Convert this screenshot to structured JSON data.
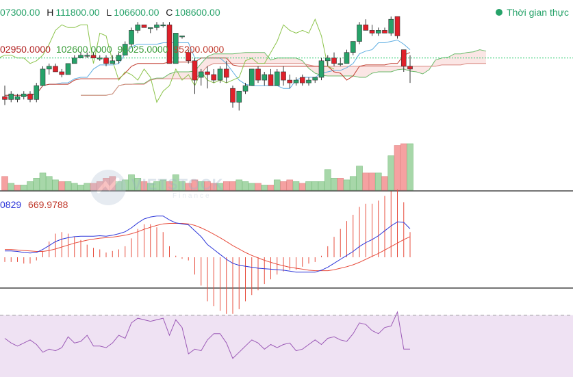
{
  "header": {
    "ohlc": {
      "open": "07300.00",
      "high_key": "H",
      "high": "111800.00",
      "low_key": "L",
      "low": "106600.00",
      "close_key": "C",
      "close": "108600.00"
    },
    "ichimoku": {
      "v1": "02950.0000",
      "v2": "102600.0000",
      "v3": "98025.0000",
      "v4": "95200.0000"
    },
    "macd": {
      "v1": "0829",
      "v2": "669.9788"
    },
    "realtime_label": "Thời gian thực"
  },
  "watermark": {
    "text": "VIETSTOCK",
    "sub": "Finance"
  },
  "colors": {
    "up": "#26a269",
    "down": "#e0202a",
    "vol_up": "#a7d7a9",
    "vol_down": "#f5a1a1",
    "macd": "#2b35d9",
    "signal": "#e74c3c",
    "rsi": "#9b59b6",
    "rsi_bg": "#efe2f3",
    "ichi_v1": "#b22222",
    "ichi_v2": "#3a9d3a",
    "ichi_v3": "#3a9d3a",
    "ichi_v4": "#c0392b"
  },
  "chart_data": {
    "type": "candlestick",
    "candles": [
      {
        "o": 17,
        "h": 21,
        "l": 14,
        "c": 16
      },
      {
        "o": 16,
        "h": 19,
        "l": 15,
        "c": 18
      },
      {
        "o": 16,
        "h": 18,
        "l": 15,
        "c": 17
      },
      {
        "o": 17,
        "h": 19,
        "l": 16,
        "c": 18
      },
      {
        "o": 18,
        "h": 19,
        "l": 15,
        "c": 16
      },
      {
        "o": 16,
        "h": 22,
        "l": 15,
        "c": 21
      },
      {
        "o": 21,
        "h": 28,
        "l": 21,
        "c": 27
      },
      {
        "o": 27,
        "h": 29,
        "l": 25,
        "c": 28
      },
      {
        "o": 28,
        "h": 29,
        "l": 26,
        "c": 26
      },
      {
        "o": 26,
        "h": 27,
        "l": 24,
        "c": 25
      },
      {
        "o": 25,
        "h": 29,
        "l": 25,
        "c": 29
      },
      {
        "o": 29,
        "h": 32,
        "l": 29,
        "c": 31
      },
      {
        "o": 31,
        "h": 33,
        "l": 31,
        "c": 32
      },
      {
        "o": 32,
        "h": 33,
        "l": 31,
        "c": 32
      },
      {
        "o": 32,
        "h": 33,
        "l": 31,
        "c": 31
      },
      {
        "o": 31,
        "h": 32,
        "l": 30,
        "c": 31
      },
      {
        "o": 31,
        "h": 32,
        "l": 28,
        "c": 29
      },
      {
        "o": 29,
        "h": 32,
        "l": 29,
        "c": 30
      },
      {
        "o": 30,
        "h": 33,
        "l": 29,
        "c": 32
      },
      {
        "o": 32,
        "h": 37,
        "l": 32,
        "c": 36
      },
      {
        "o": 36,
        "h": 42,
        "l": 35,
        "c": 41
      },
      {
        "o": 41,
        "h": 44,
        "l": 40,
        "c": 43
      },
      {
        "o": 43,
        "h": 43,
        "l": 42,
        "c": 42
      },
      {
        "o": 42,
        "h": 42,
        "l": 40,
        "c": 42
      },
      {
        "o": 42,
        "h": 44,
        "l": 41,
        "c": 43
      },
      {
        "o": 43,
        "h": 44,
        "l": 42,
        "c": 43
      },
      {
        "o": 43,
        "h": 44,
        "l": 29,
        "c": 29
      },
      {
        "o": 29,
        "h": 40,
        "l": 29,
        "c": 40
      },
      {
        "o": 39,
        "h": 39,
        "l": 38,
        "c": 39
      },
      {
        "o": 33,
        "h": 34,
        "l": 29,
        "c": 30
      },
      {
        "o": 30,
        "h": 31,
        "l": 18,
        "c": 23
      },
      {
        "o": 24,
        "h": 27,
        "l": 21,
        "c": 26
      },
      {
        "o": 26,
        "h": 28,
        "l": 20,
        "c": 25
      },
      {
        "o": 25,
        "h": 27,
        "l": 22,
        "c": 23
      },
      {
        "o": 23,
        "h": 28,
        "l": 22,
        "c": 27
      },
      {
        "o": 27,
        "h": 30,
        "l": 22,
        "c": 24
      },
      {
        "o": 20,
        "h": 21,
        "l": 13,
        "c": 15
      },
      {
        "o": 15,
        "h": 19,
        "l": 12,
        "c": 19
      },
      {
        "o": 19,
        "h": 22,
        "l": 18,
        "c": 21
      },
      {
        "o": 21,
        "h": 27,
        "l": 21,
        "c": 27
      },
      {
        "o": 27,
        "h": 28,
        "l": 22,
        "c": 23
      },
      {
        "o": 23,
        "h": 26,
        "l": 21,
        "c": 25
      },
      {
        "o": 25,
        "h": 27,
        "l": 21,
        "c": 21
      },
      {
        "o": 21,
        "h": 27,
        "l": 21,
        "c": 26
      },
      {
        "o": 26,
        "h": 28,
        "l": 21,
        "c": 23
      },
      {
        "o": 23,
        "h": 25,
        "l": 20,
        "c": 22
      },
      {
        "o": 22,
        "h": 24,
        "l": 21,
        "c": 23
      },
      {
        "o": 24,
        "h": 25,
        "l": 21,
        "c": 22
      },
      {
        "o": 22,
        "h": 24,
        "l": 21,
        "c": 23
      },
      {
        "o": 23,
        "h": 24,
        "l": 22,
        "c": 24
      },
      {
        "o": 24,
        "h": 31,
        "l": 23,
        "c": 30
      },
      {
        "o": 30,
        "h": 32,
        "l": 28,
        "c": 31
      },
      {
        "o": 31,
        "h": 33,
        "l": 28,
        "c": 29
      },
      {
        "o": 29,
        "h": 31,
        "l": 28,
        "c": 29
      },
      {
        "o": 29,
        "h": 34,
        "l": 29,
        "c": 33
      },
      {
        "o": 33,
        "h": 37,
        "l": 32,
        "c": 37
      },
      {
        "o": 37,
        "h": 44,
        "l": 36,
        "c": 43
      },
      {
        "o": 43,
        "h": 45,
        "l": 41,
        "c": 41
      },
      {
        "o": 41,
        "h": 43,
        "l": 39,
        "c": 40
      },
      {
        "o": 40,
        "h": 42,
        "l": 39,
        "c": 41
      },
      {
        "o": 41,
        "h": 42,
        "l": 40,
        "c": 40
      },
      {
        "o": 40,
        "h": 46,
        "l": 39,
        "c": 45
      },
      {
        "o": 46,
        "h": 46,
        "l": 38,
        "c": 39
      },
      {
        "o": 34,
        "h": 34,
        "l": 26,
        "c": 28
      },
      {
        "o": 28,
        "h": 32,
        "l": 22,
        "c": 27
      }
    ],
    "volume": [
      8,
      4,
      3,
      3,
      5,
      7,
      10,
      8,
      6,
      5,
      5,
      4,
      3,
      4,
      4,
      5,
      7,
      8,
      5,
      6,
      9,
      7,
      5,
      4,
      5,
      6,
      5,
      9,
      5,
      4,
      6,
      5,
      5,
      4,
      4,
      5,
      5,
      6,
      5,
      4,
      4,
      3,
      3,
      6,
      5,
      6,
      5,
      4,
      5,
      5,
      5,
      12,
      7,
      7,
      6,
      8,
      14,
      10,
      10,
      10,
      8,
      20,
      26,
      27,
      27
    ],
    "volume_up": [
      false,
      true,
      false,
      true,
      true,
      true,
      true,
      true,
      true,
      false,
      true,
      true,
      true,
      true,
      false,
      false,
      false,
      false,
      true,
      true,
      true,
      true,
      false,
      true,
      true,
      true,
      false,
      true,
      true,
      false,
      false,
      true,
      false,
      false,
      true,
      false,
      false,
      true,
      true,
      true,
      false,
      true,
      false,
      true,
      false,
      false,
      true,
      false,
      true,
      true,
      true,
      true,
      true,
      false,
      true,
      true,
      true,
      false,
      false,
      true,
      false,
      true,
      false,
      false,
      true
    ],
    "macd_line": [
      -15,
      -15,
      -16,
      -18,
      -19,
      -18,
      -12,
      -4,
      4,
      9,
      12,
      14,
      15,
      15,
      15,
      16,
      15,
      17,
      20,
      24,
      32,
      42,
      50,
      54,
      56,
      56,
      48,
      42,
      40,
      38,
      26,
      14,
      -2,
      -12,
      -22,
      -32,
      -40,
      -44,
      -46,
      -48,
      -50,
      -51,
      -52,
      -53,
      -54,
      -56,
      -58,
      -58,
      -58,
      -58,
      -54,
      -48,
      -40,
      -32,
      -24,
      -16,
      -6,
      2,
      8,
      16,
      26,
      36,
      44,
      43,
      30
    ],
    "signal_line": [
      -12,
      -12,
      -13,
      -14,
      -15,
      -16,
      -16,
      -14,
      -11,
      -7,
      -3,
      1,
      4,
      7,
      9,
      11,
      12,
      13,
      15,
      17,
      20,
      24,
      29,
      33,
      37,
      40,
      41,
      41,
      41,
      40,
      37,
      32,
      26,
      19,
      12,
      4,
      -4,
      -11,
      -18,
      -24,
      -29,
      -34,
      -38,
      -42,
      -45,
      -48,
      -50,
      -52,
      -54,
      -55,
      -55,
      -55,
      -53,
      -50,
      -47,
      -43,
      -38,
      -32,
      -26,
      -20,
      -13,
      -6,
      1,
      8,
      14
    ],
    "rsi": [
      55,
      52,
      50,
      52,
      54,
      51,
      46,
      48,
      47,
      49,
      56,
      52,
      53,
      57,
      50,
      50,
      49,
      52,
      57,
      55,
      65,
      68,
      67,
      66,
      67,
      68,
      57,
      67,
      62,
      45,
      48,
      47,
      54,
      58,
      58,
      52,
      42,
      46,
      50,
      54,
      52,
      48,
      51,
      49,
      51,
      52,
      47,
      48,
      51,
      54,
      51,
      55,
      56,
      54,
      53,
      58,
      65,
      64,
      60,
      58,
      62,
      63,
      72,
      48,
      48
    ],
    "rsi_ylim": [
      30,
      80
    ],
    "rsi_dashed_level": 70,
    "price_ylim": [
      0,
      50
    ]
  }
}
